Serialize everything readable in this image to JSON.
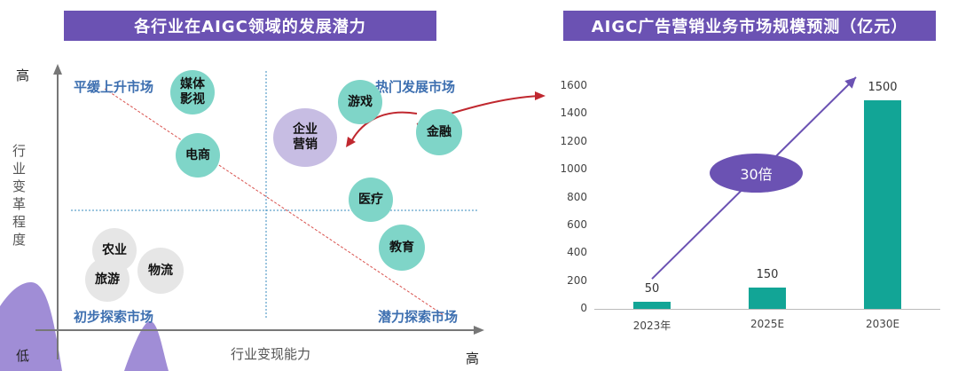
{
  "left_panel": {
    "title": "各行业在AIGC领域的发展潜力",
    "y_high": "高",
    "y_low": "低",
    "x_high": "高",
    "y_axis_label": [
      "行",
      "业",
      "变",
      "革",
      "程",
      "度"
    ],
    "x_axis_label": "行业变现能力",
    "quadrants": {
      "top_left": "平缓上升市场",
      "top_right": "热门发展市场",
      "bottom_left": "初步探索市场",
      "bottom_right": "潜力探索市场"
    },
    "bubbles": {
      "media": "媒体\n影视",
      "ecommerce": "电商",
      "enterprise_marketing": "企业\n营销",
      "game": "游戏",
      "finance": "金融",
      "medical": "医疗",
      "education": "教育",
      "agriculture": "农业",
      "tourism": "旅游",
      "logistics": "物流"
    },
    "colors": {
      "hot": "#7fd5c8",
      "early": "#e6e6e6",
      "focus": "#c7bde3"
    }
  },
  "chart_data": {
    "type": "bar",
    "title": "AIGC广告营销业务市场规模预测（亿元）",
    "categories": [
      "2023年",
      "2025E",
      "2030E"
    ],
    "values": [
      50,
      150,
      1500
    ],
    "value_labels": [
      "50",
      "150",
      "1500"
    ],
    "ylim": [
      0,
      1600
    ],
    "yticks": [
      "0",
      "200",
      "400",
      "600",
      "800",
      "1000",
      "1200",
      "1400",
      "1600"
    ],
    "xlabel": "",
    "ylabel": "",
    "annotation": "30倍",
    "bar_color": "#12a596",
    "accent": "#6b52b3"
  }
}
